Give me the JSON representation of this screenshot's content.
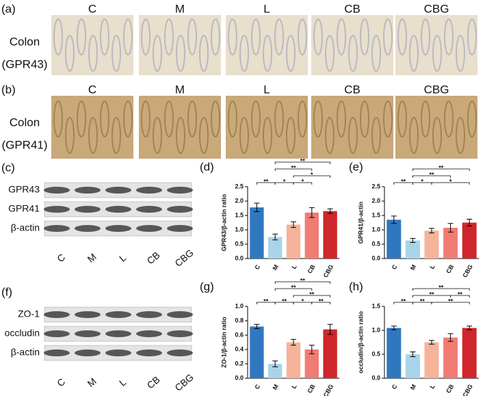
{
  "micrographs": [
    {
      "label": "(a)",
      "tissue": "Colon",
      "marker": "(GPR43)",
      "groups": [
        "C",
        "M",
        "L",
        "CB",
        "CBG"
      ]
    },
    {
      "label": "(b)",
      "tissue": "Colon",
      "marker": "(GPR41)",
      "groups": [
        "C",
        "M",
        "L",
        "CB",
        "CBG"
      ]
    }
  ],
  "blots": [
    {
      "label": "(c)",
      "bands": [
        "GPR43",
        "GPR41",
        "β-actin"
      ],
      "lanes": [
        "C",
        "M",
        "L",
        "CB",
        "CBG"
      ]
    },
    {
      "label": "(f)",
      "bands": [
        "ZO-1",
        "occludin",
        "β-actin"
      ],
      "lanes": [
        "C",
        "M",
        "L",
        "CB",
        "CBG"
      ]
    }
  ],
  "chart_data": [
    {
      "type": "bar",
      "label": "(d)",
      "ylabel": "GPR43/β-actin ratio",
      "categories": [
        "C",
        "M",
        "L",
        "CB",
        "CBG"
      ],
      "values": [
        1.78,
        0.75,
        1.18,
        1.6,
        1.65
      ],
      "errors": [
        0.15,
        0.1,
        0.1,
        0.17,
        0.08
      ],
      "colors": [
        "#2f78c0",
        "#a9d4e8",
        "#f5b49a",
        "#f07c74",
        "#d0262b"
      ],
      "ylim": [
        0,
        2.5
      ],
      "yticks": [
        {
          "value": 0,
          "label": "0.0"
        },
        {
          "value": 0.5,
          "label": "0.5"
        },
        {
          "value": 1,
          "label": "1.0"
        },
        {
          "value": 1.5,
          "label": "1.5"
        },
        {
          "value": 2,
          "label": "2.0"
        },
        {
          "value": 2.5,
          "label": "2.5"
        }
      ],
      "brackets": [
        [
          {
            "text": "**",
            "from": 0,
            "to": 1
          },
          {
            "text": "*",
            "from": 1,
            "to": 2
          },
          {
            "text": "*",
            "from": 2,
            "to": 3
          }
        ],
        [
          {
            "text": "*",
            "from": 2,
            "to": 4
          }
        ],
        [
          {
            "text": "**",
            "from": 1,
            "to": 3
          }
        ],
        [
          {
            "text": "**",
            "from": 1,
            "to": 4
          }
        ]
      ]
    },
    {
      "type": "bar",
      "label": "(e)",
      "ylabel": "GPR41/β-actin",
      "categories": [
        "C",
        "M",
        "L",
        "CB",
        "CBG"
      ],
      "values": [
        1.35,
        0.63,
        0.97,
        1.07,
        1.25
      ],
      "errors": [
        0.13,
        0.07,
        0.08,
        0.15,
        0.12
      ],
      "colors": [
        "#2f78c0",
        "#a9d4e8",
        "#f5b49a",
        "#f07c74",
        "#d0262b"
      ],
      "ylim": [
        0,
        2.5
      ],
      "yticks": [
        {
          "value": 0,
          "label": "0.0"
        },
        {
          "value": 0.5,
          "label": "0.5"
        },
        {
          "value": 1,
          "label": "1.0"
        },
        {
          "value": 1.5,
          "label": "1.5"
        },
        {
          "value": 2,
          "label": "2.0"
        },
        {
          "value": 2.5,
          "label": "2.5"
        }
      ],
      "brackets": [
        [
          {
            "text": "**",
            "from": 0,
            "to": 1
          },
          {
            "text": "*",
            "from": 1,
            "to": 2
          },
          {
            "text": "*",
            "from": 2,
            "to": 4
          }
        ],
        [
          {
            "text": "**",
            "from": 1,
            "to": 3
          }
        ],
        [
          {
            "text": "**",
            "from": 1,
            "to": 4
          }
        ]
      ]
    },
    {
      "type": "bar",
      "label": "(g)",
      "ylabel": "ZO-1/β-actin ratio",
      "categories": [
        "C",
        "M",
        "L",
        "CB",
        "CBG"
      ],
      "values": [
        0.72,
        0.2,
        0.5,
        0.4,
        0.68
      ],
      "errors": [
        0.03,
        0.04,
        0.04,
        0.06,
        0.07
      ],
      "colors": [
        "#2f78c0",
        "#a9d4e8",
        "#f5b49a",
        "#f07c74",
        "#d0262b"
      ],
      "ylim": [
        0,
        1
      ],
      "yticks": [
        {
          "value": 0,
          "label": "0.0"
        },
        0.2,
        0.4,
        0.6,
        0.8,
        {
          "value": 1,
          "label": "1.0"
        }
      ],
      "brackets": [
        [
          {
            "text": "**",
            "from": 0,
            "to": 1
          },
          {
            "text": "**",
            "from": 1,
            "to": 2
          },
          {
            "text": "*",
            "from": 2,
            "to": 3
          },
          {
            "text": "**",
            "from": 3,
            "to": 4
          }
        ],
        [
          {
            "text": "**",
            "from": 2,
            "to": 4
          }
        ],
        [
          {
            "text": "**",
            "from": 1,
            "to": 3
          }
        ],
        [
          {
            "text": "**",
            "from": 1,
            "to": 4
          }
        ]
      ]
    },
    {
      "type": "bar",
      "label": "(h)",
      "ylabel": "occludin/β-actin ratio",
      "categories": [
        "C",
        "M",
        "L",
        "CB",
        "CBG"
      ],
      "values": [
        1.05,
        0.5,
        0.75,
        0.85,
        1.05
      ],
      "errors": [
        0.04,
        0.05,
        0.04,
        0.08,
        0.04
      ],
      "colors": [
        "#2f78c0",
        "#a9d4e8",
        "#f5b49a",
        "#f07c74",
        "#d0262b"
      ],
      "ylim": [
        0,
        1.5
      ],
      "yticks": [
        {
          "value": 0,
          "label": "0.0"
        },
        {
          "value": 0.5,
          "label": "0.5"
        },
        {
          "value": 1,
          "label": "1.0"
        },
        {
          "value": 1.5,
          "label": "1.5"
        }
      ],
      "brackets": [
        [
          {
            "text": "**",
            "from": 0,
            "to": 1
          },
          {
            "text": "**",
            "from": 1,
            "to": 2
          },
          {
            "text": "**",
            "from": 2,
            "to": 4
          }
        ],
        [
          {
            "text": "**",
            "from": 1,
            "to": 3
          },
          {
            "text": "**",
            "from": 3,
            "to": 4
          }
        ],
        [
          {
            "text": "**",
            "from": 1,
            "to": 4
          }
        ]
      ]
    }
  ]
}
